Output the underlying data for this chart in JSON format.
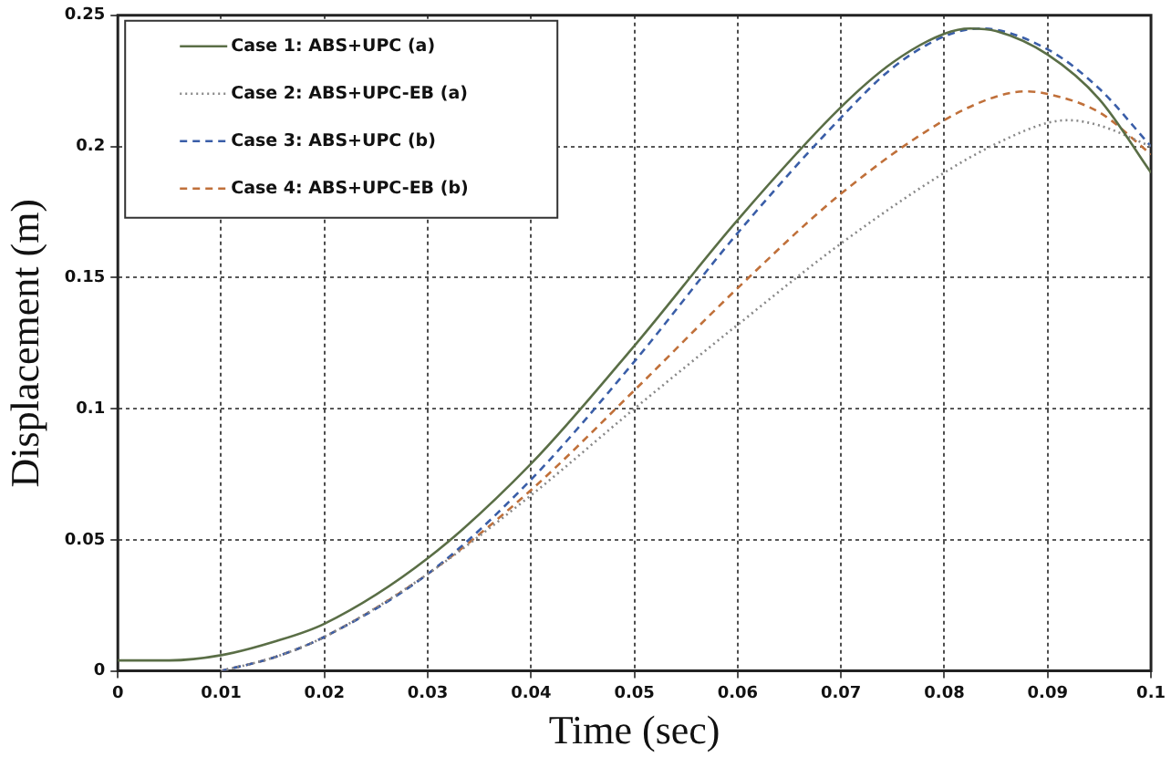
{
  "chart_data": {
    "type": "line",
    "xlabel": "Time (sec)",
    "ylabel": "Displacement (m)",
    "xlim": [
      0,
      0.1
    ],
    "xticks": [
      0,
      0.01,
      0.02,
      0.03,
      0.04,
      0.05,
      0.06,
      0.07,
      0.08,
      0.09,
      0.1
    ],
    "ylim": [
      0,
      0.25
    ],
    "yticks": [
      0,
      0.05,
      0.1,
      0.15,
      0.2,
      0.25
    ],
    "grid": true,
    "legend": "top left",
    "marker": "none",
    "series": [
      {
        "name": "Case 1: ABS+UPC (a)",
        "color": "#5a6e46",
        "line_style": "solid",
        "x": [
          0,
          0.005,
          0.01,
          0.015,
          0.02,
          0.03,
          0.04,
          0.05,
          0.06,
          0.07,
          0.075,
          0.08,
          0.0825,
          0.085,
          0.09,
          0.095,
          0.1
        ],
        "values": [
          0.004,
          0.004,
          0.006,
          0.011,
          0.018,
          0.043,
          0.079,
          0.124,
          0.172,
          0.215,
          0.232,
          0.243,
          0.245,
          0.244,
          0.235,
          0.218,
          0.19
        ]
      },
      {
        "name": "Case 2: ABS+UPC-EB (a)",
        "color": "#888888",
        "line_style": "dotted",
        "x": [
          0.01,
          0.015,
          0.02,
          0.03,
          0.04,
          0.05,
          0.06,
          0.07,
          0.08,
          0.085,
          0.09,
          0.092,
          0.095,
          0.1
        ],
        "values": [
          0,
          0.005,
          0.013,
          0.037,
          0.067,
          0.1,
          0.132,
          0.163,
          0.19,
          0.201,
          0.209,
          0.21,
          0.208,
          0.2
        ]
      },
      {
        "name": "Case 3: ABS+UPC (b)",
        "color": "#3a5ea8",
        "line_style": "dashed",
        "x": [
          0.01,
          0.015,
          0.02,
          0.03,
          0.04,
          0.05,
          0.06,
          0.07,
          0.075,
          0.08,
          0.0835,
          0.09,
          0.095,
          0.1
        ],
        "values": [
          0,
          0.005,
          0.013,
          0.037,
          0.073,
          0.118,
          0.167,
          0.211,
          0.23,
          0.242,
          0.245,
          0.237,
          0.222,
          0.2
        ]
      },
      {
        "name": "Case 4: ABS+UPC-EB (b)",
        "color": "#c0703a",
        "line_style": "dashed",
        "x": [
          0.01,
          0.015,
          0.02,
          0.03,
          0.04,
          0.05,
          0.06,
          0.07,
          0.08,
          0.085,
          0.088,
          0.09,
          0.095,
          0.1
        ],
        "values": [
          0,
          0.005,
          0.013,
          0.037,
          0.069,
          0.107,
          0.146,
          0.182,
          0.21,
          0.219,
          0.221,
          0.22,
          0.213,
          0.197
        ]
      }
    ]
  }
}
